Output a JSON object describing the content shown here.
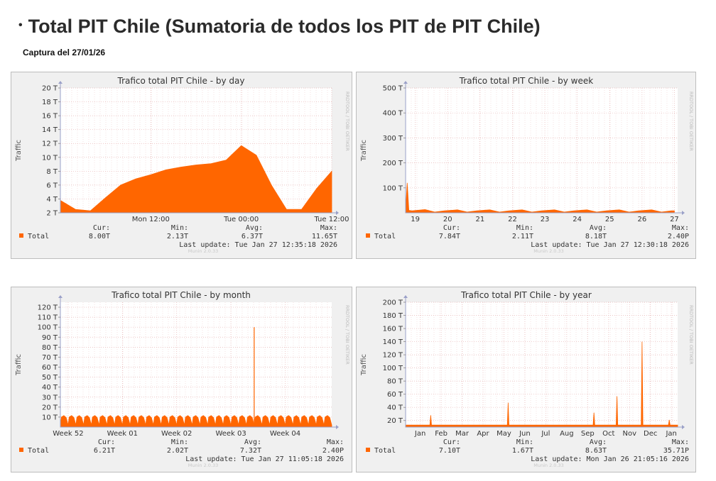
{
  "header": {
    "bullet": "•",
    "title": "Total PIT Chile (Sumatoria de todos los PIT de PIT Chile)",
    "capture": "Captura del 27/01/26"
  },
  "common": {
    "ylabel": "Traffic",
    "side_text": "RRDTOOL / TOBI OETIKER",
    "munin": "Munin 2.0.33",
    "legend_name": "Total",
    "legend_color": "#ff6600",
    "headers": {
      "cur": "Cur:",
      "min": "Min:",
      "avg": "Avg:",
      "max": "Max:"
    }
  },
  "chart_data": [
    {
      "type": "area",
      "title": "Trafico total PIT Chile - by day",
      "ylabel": "Traffic",
      "ylim": [
        2,
        20
      ],
      "y_ticks": [
        {
          "v": 2,
          "label": "2 T"
        },
        {
          "v": 4,
          "label": "4 T"
        },
        {
          "v": 6,
          "label": "6 T"
        },
        {
          "v": 8,
          "label": "8 T"
        },
        {
          "v": 10,
          "label": "10 T"
        },
        {
          "v": 12,
          "label": "12 T"
        },
        {
          "v": 14,
          "label": "14 T"
        },
        {
          "v": 16,
          "label": "16 T"
        },
        {
          "v": 18,
          "label": "18 T"
        },
        {
          "v": 20,
          "label": "20 T"
        }
      ],
      "xlim": [
        0,
        36
      ],
      "x_ticks": [
        {
          "v": 12,
          "label": "Mon 12:00"
        },
        {
          "v": 24,
          "label": "Tue 00:00"
        },
        {
          "v": 36,
          "label": "Tue 12:00"
        }
      ],
      "series": [
        {
          "name": "Total",
          "x": [
            0,
            2,
            4,
            6,
            8,
            10,
            12,
            14,
            16,
            18,
            20,
            22,
            24,
            26,
            28,
            30,
            32,
            34,
            36
          ],
          "values": [
            3.8,
            2.5,
            2.3,
            4.2,
            6.0,
            6.9,
            7.5,
            8.2,
            8.6,
            8.9,
            9.1,
            9.6,
            11.7,
            10.3,
            6.0,
            2.5,
            2.5,
            5.5,
            8.0
          ]
        }
      ],
      "stats": {
        "cur": "8.00T",
        "min": "2.13T",
        "avg": "6.37T",
        "max": "11.65T"
      },
      "last_update": "Last update: Tue Jan 27 12:35:18 2026"
    },
    {
      "type": "area",
      "title": "Trafico total PIT Chile - by week",
      "ylabel": "Traffic",
      "ylim": [
        0,
        500
      ],
      "y_ticks": [
        {
          "v": 100,
          "label": "100 T"
        },
        {
          "v": 200,
          "label": "200 T"
        },
        {
          "v": 300,
          "label": "300 T"
        },
        {
          "v": 400,
          "label": "400 T"
        },
        {
          "v": 500,
          "label": "500 T"
        }
      ],
      "xlim": [
        18.7,
        27.1
      ],
      "x_ticks": [
        {
          "v": 19,
          "label": "19"
        },
        {
          "v": 20,
          "label": "20"
        },
        {
          "v": 21,
          "label": "21"
        },
        {
          "v": 22,
          "label": "22"
        },
        {
          "v": 23,
          "label": "23"
        },
        {
          "v": 24,
          "label": "24"
        },
        {
          "v": 25,
          "label": "25"
        },
        {
          "v": 26,
          "label": "26"
        },
        {
          "v": 27,
          "label": "27"
        }
      ],
      "series": [
        {
          "name": "Total",
          "x": [
            18.7,
            18.75,
            18.8,
            18.9,
            19.3,
            19.6,
            19.9,
            20.3,
            20.6,
            20.9,
            21.3,
            21.6,
            21.9,
            22.3,
            22.6,
            22.9,
            23.3,
            23.6,
            23.9,
            24.3,
            24.6,
            24.9,
            25.3,
            25.6,
            25.9,
            26.3,
            26.6,
            26.9,
            27.0
          ],
          "values": [
            10,
            120,
            10,
            8,
            13,
            3,
            8,
            12,
            3,
            8,
            12,
            3,
            8,
            12,
            3,
            8,
            12,
            3,
            8,
            12,
            3,
            8,
            12,
            3,
            8,
            12,
            3,
            8,
            8
          ]
        }
      ],
      "stats": {
        "cur": "7.84T",
        "min": "2.11T",
        "avg": "8.18T",
        "max": "2.40P"
      },
      "last_update": "Last update: Tue Jan 27 12:30:18 2026"
    },
    {
      "type": "area",
      "title": "Trafico total PIT Chile - by month",
      "ylabel": "Traffic",
      "ylim": [
        0,
        125
      ],
      "y_ticks": [
        {
          "v": 10,
          "label": "10 T"
        },
        {
          "v": 20,
          "label": "20 T"
        },
        {
          "v": 30,
          "label": "30 T"
        },
        {
          "v": 40,
          "label": "40 T"
        },
        {
          "v": 50,
          "label": "50 T"
        },
        {
          "v": 60,
          "label": "60 T"
        },
        {
          "v": 70,
          "label": "70 T"
        },
        {
          "v": 80,
          "label": "80 T"
        },
        {
          "v": 90,
          "label": "90 T"
        },
        {
          "v": 100,
          "label": "100 T"
        },
        {
          "v": 110,
          "label": "110 T"
        },
        {
          "v": 120,
          "label": "120 T"
        }
      ],
      "xlim": [
        -1,
        34
      ],
      "x_ticks": [
        {
          "v": 0,
          "label": "Week 52"
        },
        {
          "v": 7,
          "label": "Week 01"
        },
        {
          "v": 14,
          "label": "Week 02"
        },
        {
          "v": 21,
          "label": "Week 03"
        },
        {
          "v": 28,
          "label": "Week 04"
        }
      ],
      "series": [
        {
          "name": "Total",
          "daily_low": 2,
          "daily_high": 11.5,
          "spike_x": 24,
          "spike_value": 100
        }
      ],
      "stats": {
        "cur": "6.21T",
        "min": "2.02T",
        "avg": "7.32T",
        "max": "2.40P"
      },
      "last_update": "Last update: Tue Jan 27 11:05:18 2026"
    },
    {
      "type": "area",
      "title": "Trafico total PIT Chile - by year",
      "ylabel": "Traffic",
      "ylim": [
        10,
        200
      ],
      "y_ticks": [
        {
          "v": 20,
          "label": "20 T"
        },
        {
          "v": 40,
          "label": "40 T"
        },
        {
          "v": 60,
          "label": "60 T"
        },
        {
          "v": 80,
          "label": "80 T"
        },
        {
          "v": 100,
          "label": "100 T"
        },
        {
          "v": 120,
          "label": "120 T"
        },
        {
          "v": 140,
          "label": "140 T"
        },
        {
          "v": 160,
          "label": "160 T"
        },
        {
          "v": 180,
          "label": "180 T"
        },
        {
          "v": 200,
          "label": "200 T"
        }
      ],
      "xlim": [
        -0.7,
        12.3
      ],
      "x_ticks": [
        {
          "v": 0,
          "label": "Jan"
        },
        {
          "v": 1,
          "label": "Feb"
        },
        {
          "v": 2,
          "label": "Mar"
        },
        {
          "v": 3,
          "label": "Apr"
        },
        {
          "v": 4,
          "label": "May"
        },
        {
          "v": 5,
          "label": "Jun"
        },
        {
          "v": 6,
          "label": "Jul"
        },
        {
          "v": 7,
          "label": "Aug"
        },
        {
          "v": 8,
          "label": "Sep"
        },
        {
          "v": 9,
          "label": "Oct"
        },
        {
          "v": 10,
          "label": "Nov"
        },
        {
          "v": 11,
          "label": "Dec"
        },
        {
          "v": 12,
          "label": "Jan"
        }
      ],
      "series": [
        {
          "name": "Total",
          "baseline": 13,
          "spikes": [
            {
              "x": 0.5,
              "v": 28
            },
            {
              "x": 4.2,
              "v": 47
            },
            {
              "x": 8.3,
              "v": 32
            },
            {
              "x": 9.4,
              "v": 57
            },
            {
              "x": 10.6,
              "v": 140
            },
            {
              "x": 11.9,
              "v": 21
            }
          ]
        }
      ],
      "stats": {
        "cur": "7.10T",
        "min": "1.67T",
        "avg": "8.63T",
        "max": "35.71P"
      },
      "last_update": "Last update: Mon Jan 26 21:05:16 2026"
    }
  ]
}
